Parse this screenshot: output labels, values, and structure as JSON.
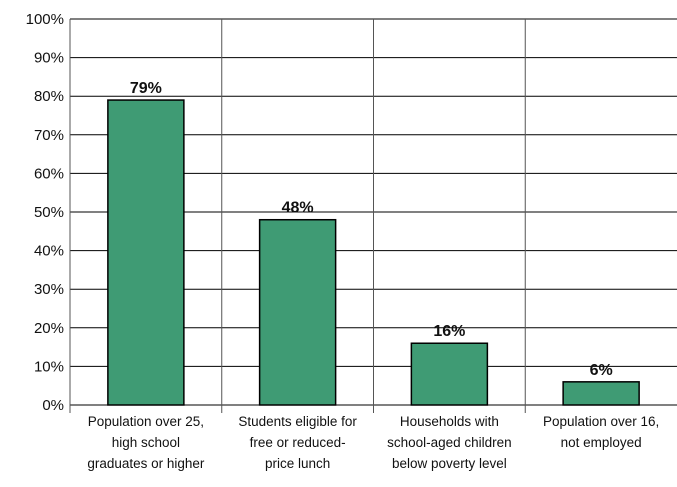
{
  "chart_data": {
    "type": "bar",
    "categories": [
      [
        "Population over 25,",
        "high school",
        "graduates or higher"
      ],
      [
        "Students eligible for",
        "free or reduced-",
        "price lunch"
      ],
      [
        "Households with",
        "school-aged children",
        "below poverty level"
      ],
      [
        "Population over 16,",
        "not employed"
      ]
    ],
    "values": [
      79,
      48,
      16,
      6
    ],
    "data_labels": [
      "79%",
      "48%",
      "16%",
      "6%"
    ],
    "ylim": [
      0,
      100
    ],
    "yticks": [
      "0%",
      "10%",
      "20%",
      "30%",
      "40%",
      "50%",
      "60%",
      "70%",
      "80%",
      "90%",
      "100%"
    ],
    "title": "",
    "xlabel": "",
    "ylabel": "",
    "grid": true,
    "bar_color": "#3f9b74"
  }
}
